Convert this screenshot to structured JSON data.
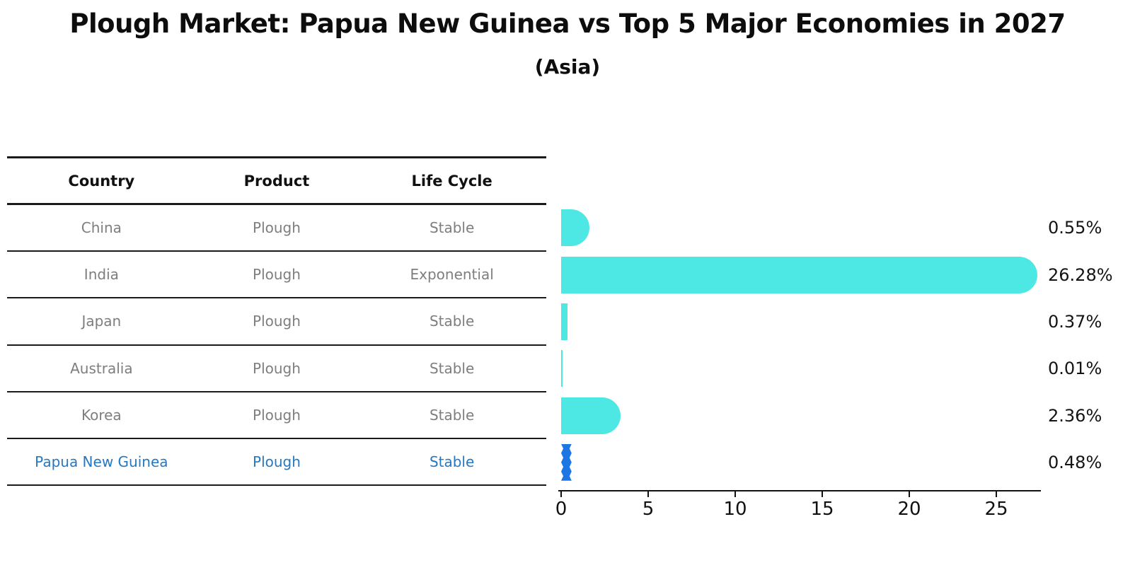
{
  "title": "Plough Market: Papua New Guinea vs Top 5 Major Economies in 2027",
  "subtitle": "(Asia)",
  "table": {
    "headers": [
      "Country",
      "Product",
      "Life Cycle"
    ],
    "rows": [
      {
        "country": "China",
        "product": "Plough",
        "life_cycle": "Stable",
        "highlighted": false
      },
      {
        "country": "India",
        "product": "Plough",
        "life_cycle": "Exponential",
        "highlighted": false
      },
      {
        "country": "Japan",
        "product": "Plough",
        "life_cycle": "Stable",
        "highlighted": false
      },
      {
        "country": "Australia",
        "product": "Plough",
        "life_cycle": "Stable",
        "highlighted": false
      },
      {
        "country": "Korea",
        "product": "Plough",
        "life_cycle": "Stable",
        "highlighted": false
      },
      {
        "country": "Papua New Guinea",
        "product": "Plough",
        "life_cycle": "Stable",
        "highlighted": true
      }
    ]
  },
  "chart_data": {
    "type": "bar",
    "orientation": "horizontal",
    "title": "Plough Market: Papua New Guinea vs Top 5 Major Economies in 2027",
    "subtitle": "(Asia)",
    "categories": [
      "China",
      "India",
      "Japan",
      "Australia",
      "Korea",
      "Papua New Guinea"
    ],
    "values": [
      0.55,
      26.28,
      0.37,
      0.01,
      2.36,
      0.48
    ],
    "value_labels": [
      "0.55%",
      "26.28%",
      "0.37%",
      "0.01%",
      "2.36%",
      "0.48%"
    ],
    "x_ticks": [
      "0",
      "5",
      "10",
      "15",
      "20",
      "25"
    ],
    "xlim": [
      0,
      27.6
    ],
    "grid": false,
    "legend": false,
    "bar_color": "#4DE8E4",
    "highlight_bar_color": "#1E76E2",
    "highlight_index": 5,
    "highlight_text_color": "#2478C4"
  },
  "colors": {
    "title_text": "#0D0D0D",
    "table_line": "#1A1A1A",
    "row_text": "#7E7E7E",
    "header_text": "#111111",
    "axis": "#111111"
  }
}
